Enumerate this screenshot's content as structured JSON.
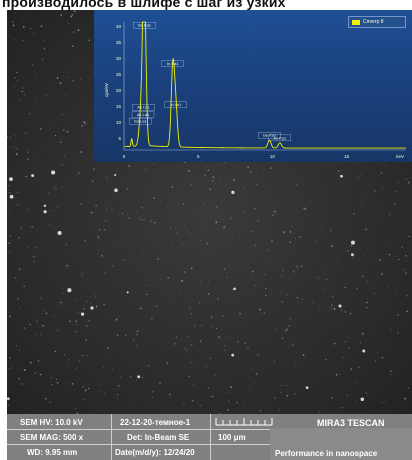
{
  "caption": "производилось в шлифе с шаг из узких",
  "spectrum": {
    "legend": "Спектр 8",
    "y_axis_label": "cps/eV",
    "y_ticks": [
      "40",
      "35",
      "30",
      "25",
      "20",
      "15",
      "10",
      "5"
    ],
    "x_ticks": [
      "0",
      "5",
      "10",
      "15"
    ],
    "x_unit": "keV",
    "peaks": [
      {
        "label": "In Ka1",
        "energy": 3.29,
        "height": 0.62
      },
      {
        "label": "Se Ka1",
        "energy": 1.38,
        "height": 0.92
      },
      {
        "label": "As La1",
        "energy": 1.28,
        "height": 0.22
      },
      {
        "label": "Ga La1",
        "energy": 1.1,
        "height": 0.17
      },
      {
        "label": "As Lb1",
        "energy": 1.32,
        "height": 0.28
      },
      {
        "label": "In Lb1",
        "energy": 3.49,
        "height": 0.3
      },
      {
        "label": "Ge Ka1",
        "energy": 9.8,
        "height": 0.06
      },
      {
        "label": "As Ka1",
        "energy": 10.5,
        "height": 0.04
      }
    ],
    "colors": {
      "background": "#1f4f94",
      "trace": "#f2f200",
      "text": "#ffffcc"
    }
  },
  "databar": {
    "hv": "SEM HV: 10.0 kV",
    "mag": "SEM MAG: 500 x",
    "wd": "WD: 9.95 mm",
    "name": "22-12-20-темное-1",
    "det": "Det: In-Beam SE",
    "date": "Date(m/d/y): 12/24/20",
    "scale": "100 μm",
    "brand": "MIRA3 TESCAN",
    "slogan": "Performance in nanospace"
  }
}
